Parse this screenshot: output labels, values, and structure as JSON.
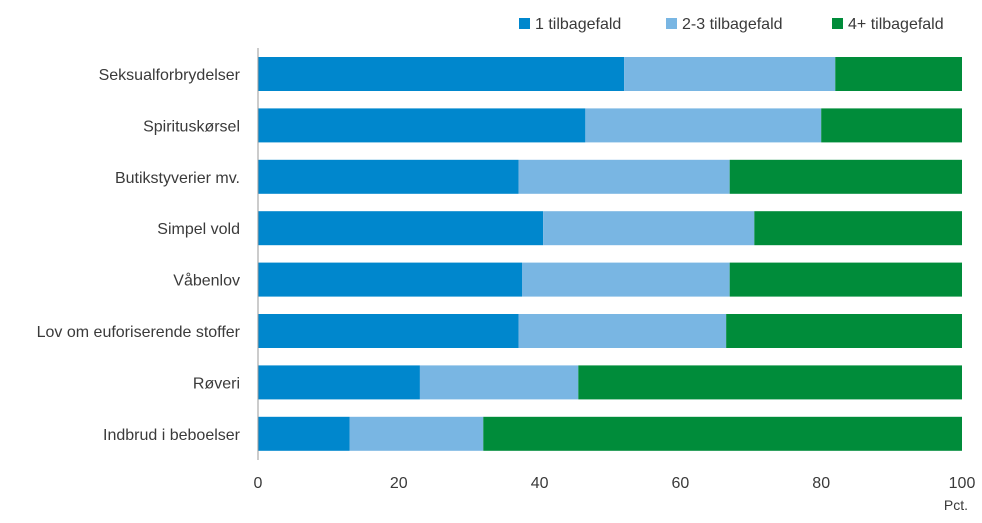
{
  "chart_data": {
    "type": "bar",
    "orientation": "horizontal",
    "stacked": true,
    "categories": [
      "Seksualforbrydelser",
      "Spirituskørsel",
      "Butikstyverier mv.",
      "Simpel vold",
      "Våbenlov",
      "Lov om euforiserende stoffer",
      "Røveri",
      "Indbrud i beboelser"
    ],
    "series": [
      {
        "name": "1 tilbagefald",
        "color": "#0087cd",
        "values": [
          52,
          46.5,
          37,
          40.5,
          37.5,
          37,
          23,
          13
        ]
      },
      {
        "name": "2-3 tilbagefald",
        "color": "#79b6e3",
        "values": [
          30,
          33.5,
          30,
          30,
          29.5,
          29.5,
          22.5,
          19
        ]
      },
      {
        "name": "4+ tilbagefald",
        "color": "#008c3a",
        "values": [
          18,
          20,
          33,
          29.5,
          33,
          33.5,
          54.5,
          68
        ]
      }
    ],
    "xlim": [
      0,
      100
    ],
    "xticks": [
      0,
      20,
      40,
      60,
      80,
      100
    ],
    "xlabel": "Pct.",
    "legend_position": "top-right",
    "grid": false
  }
}
